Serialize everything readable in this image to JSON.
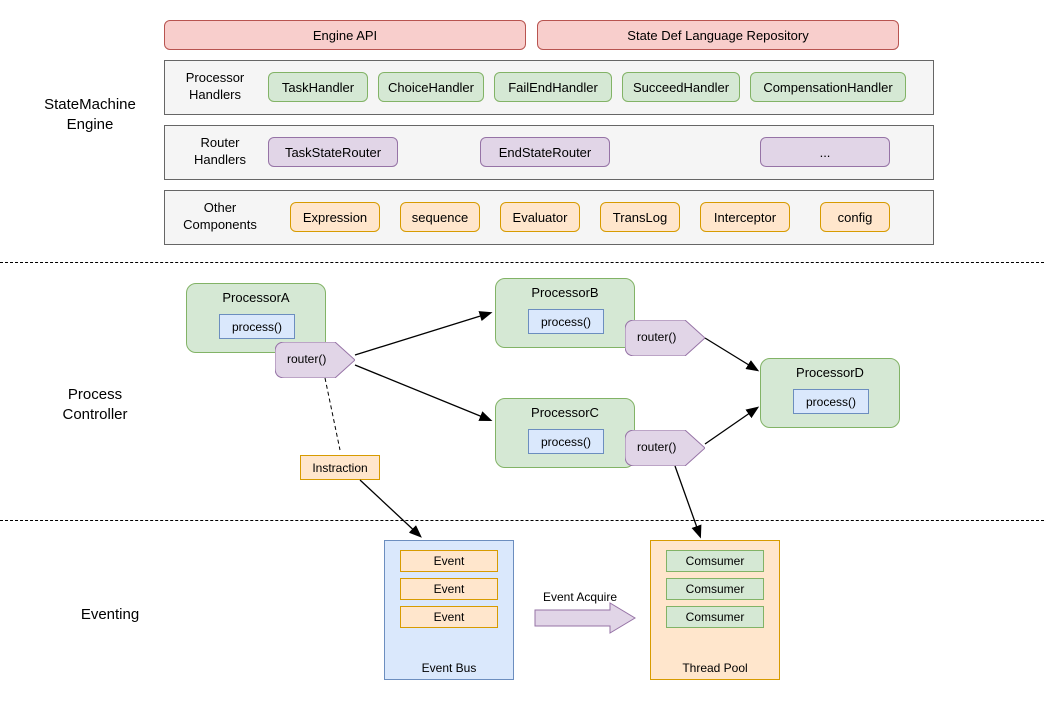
{
  "colors": {
    "red_fill": "#f8cecc",
    "red_stroke": "#b85450",
    "gray_fill": "#f5f5f5",
    "gray_stroke": "#666666",
    "green_fill": "#d5e8d4",
    "green_stroke": "#82b366",
    "purple_fill": "#e1d5e7",
    "purple_stroke": "#9673a6",
    "orange_fill": "#ffe6cc",
    "orange_stroke": "#d79b00",
    "blue_fill": "#dae8fc",
    "blue_stroke": "#6c8ebf",
    "arrow_stroke": "#000000"
  },
  "sections": {
    "s1": "StateMachine\nEngine",
    "s2": "Process\nController",
    "s3": "Eventing"
  },
  "top": {
    "api": "Engine API",
    "repo": "State Def Language Repository"
  },
  "engine": {
    "processor_handlers_label": "Processor\nHandlers",
    "processor_handlers": [
      "TaskHandler",
      "ChoiceHandler",
      "FailEndHandler",
      "SucceedHandler",
      "CompensationHandler"
    ],
    "router_handlers_label": "Router\nHandlers",
    "router_handlers": [
      "TaskStateRouter",
      "EndStateRouter",
      "..."
    ],
    "other_label": "Other\nComponents",
    "other": [
      "Expression",
      "sequence",
      "Evaluator",
      "TransLog",
      "Interceptor",
      "config"
    ]
  },
  "process": {
    "pA": "ProcessorA",
    "pB": "ProcessorB",
    "pC": "ProcessorC",
    "pD": "ProcessorD",
    "process_call": "process()",
    "router_call": "router()",
    "instraction": "Instraction"
  },
  "eventing": {
    "event": "Event",
    "event_bus": "Event Bus",
    "consumer": "Comsumer",
    "thread_pool": "Thread Pool",
    "event_acquire": "Event Acquire"
  }
}
